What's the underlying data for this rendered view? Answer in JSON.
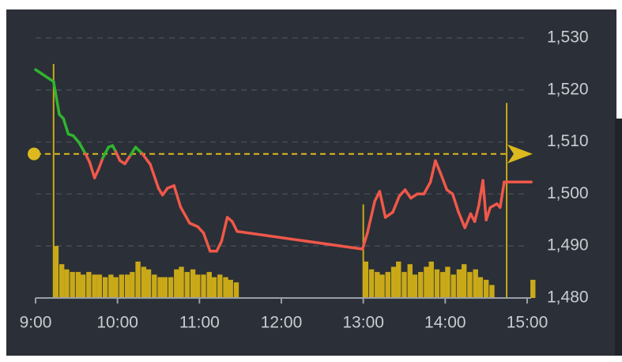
{
  "chart_data": {
    "type": "line",
    "x": [
      9.0,
      9.22,
      9.29,
      9.34,
      9.4,
      9.46,
      9.53,
      9.61,
      9.66,
      9.72,
      9.77,
      9.82,
      9.89,
      9.94,
      9.98,
      10.03,
      10.09,
      10.16,
      10.22,
      10.3,
      10.4,
      10.5,
      10.55,
      10.61,
      10.69,
      10.77,
      10.88,
      10.98,
      11.05,
      11.13,
      11.21,
      11.27,
      11.34,
      11.4,
      11.46,
      12.99,
      13.05,
      13.14,
      13.2,
      13.27,
      13.36,
      13.44,
      13.51,
      13.58,
      13.66,
      13.74,
      13.82,
      13.88,
      13.94,
      14.02,
      14.09,
      14.16,
      14.24,
      14.31,
      14.36,
      14.41,
      14.46,
      14.5,
      14.55,
      14.63,
      14.67,
      14.72,
      15.05
    ],
    "values": [
      1523.9,
      1521.6,
      1515.3,
      1514.5,
      1511.5,
      1511.2,
      1509.9,
      1507.7,
      1506.1,
      1503.1,
      1504.8,
      1506.9,
      1509.0,
      1509.3,
      1508.1,
      1506.4,
      1505.8,
      1507.5,
      1509.0,
      1507.8,
      1505.7,
      1501.1,
      1499.8,
      1501.1,
      1501.6,
      1497.5,
      1494.4,
      1493.7,
      1492.5,
      1489.0,
      1489.0,
      1490.9,
      1495.5,
      1494.7,
      1492.8,
      1489.4,
      1492.5,
      1498.6,
      1500.5,
      1495.5,
      1496.5,
      1499.6,
      1500.8,
      1499.2,
      1500.0,
      1500.0,
      1502.3,
      1506.4,
      1504.1,
      1500.8,
      1500.0,
      1496.6,
      1493.5,
      1496.2,
      1494.7,
      1497.8,
      1502.6,
      1495.0,
      1497.4,
      1498.1,
      1497.4,
      1502.3,
      1502.3
    ],
    "above_color": "#2fb52f",
    "below_color": "#f0584a",
    "reference": 1507.7,
    "reference_color": "#dcb91e",
    "volume": {
      "color": "#c9a918",
      "x": [
        9.22,
        9.25,
        9.32,
        9.38,
        9.45,
        9.52,
        9.58,
        9.65,
        9.72,
        9.78,
        9.85,
        9.92,
        9.98,
        10.05,
        10.12,
        10.18,
        10.25,
        10.32,
        10.38,
        10.45,
        10.52,
        10.58,
        10.65,
        10.72,
        10.78,
        10.85,
        10.92,
        10.98,
        11.05,
        11.12,
        11.18,
        11.25,
        11.32,
        11.38,
        11.45,
        13.0,
        13.03,
        13.1,
        13.17,
        13.23,
        13.3,
        13.37,
        13.43,
        13.5,
        13.57,
        13.63,
        13.7,
        13.77,
        13.83,
        13.9,
        13.97,
        14.03,
        14.1,
        14.17,
        14.23,
        14.3,
        14.37,
        14.43,
        14.5,
        14.57,
        14.75,
        15.07
      ],
      "values": [
        90,
        20,
        13,
        11,
        10,
        10,
        9,
        10,
        9,
        9,
        8,
        9,
        8,
        9,
        9,
        10,
        14,
        12,
        11,
        9,
        8,
        8,
        8,
        11,
        12,
        10,
        11,
        9,
        9,
        10,
        8,
        9,
        8,
        7,
        6,
        36,
        14,
        11,
        10,
        9,
        10,
        12,
        14,
        10,
        13,
        9,
        10,
        12,
        14,
        11,
        10,
        12,
        9,
        11,
        13,
        10,
        11,
        8,
        7,
        5,
        75,
        7
      ],
      "ylim": [
        0,
        100
      ]
    },
    "xlim": [
      9.0,
      15.0
    ],
    "xticks": [
      {
        "value": 9,
        "label": "9:00"
      },
      {
        "value": 10,
        "label": "10:00"
      },
      {
        "value": 11,
        "label": "11:00"
      },
      {
        "value": 12,
        "label": "12:00"
      },
      {
        "value": 13,
        "label": "13:00"
      },
      {
        "value": 14,
        "label": "14:00"
      },
      {
        "value": 15,
        "label": "15:00"
      }
    ],
    "ylim": [
      1480,
      1530
    ],
    "yticks": [
      {
        "value": 1480,
        "label": "1,480"
      },
      {
        "value": 1490,
        "label": "1,490"
      },
      {
        "value": 1500,
        "label": "1,500"
      },
      {
        "value": 1510,
        "label": "1,510"
      },
      {
        "value": 1520,
        "label": "1,520"
      },
      {
        "value": 1530,
        "label": "1,530"
      }
    ],
    "grid": true
  }
}
